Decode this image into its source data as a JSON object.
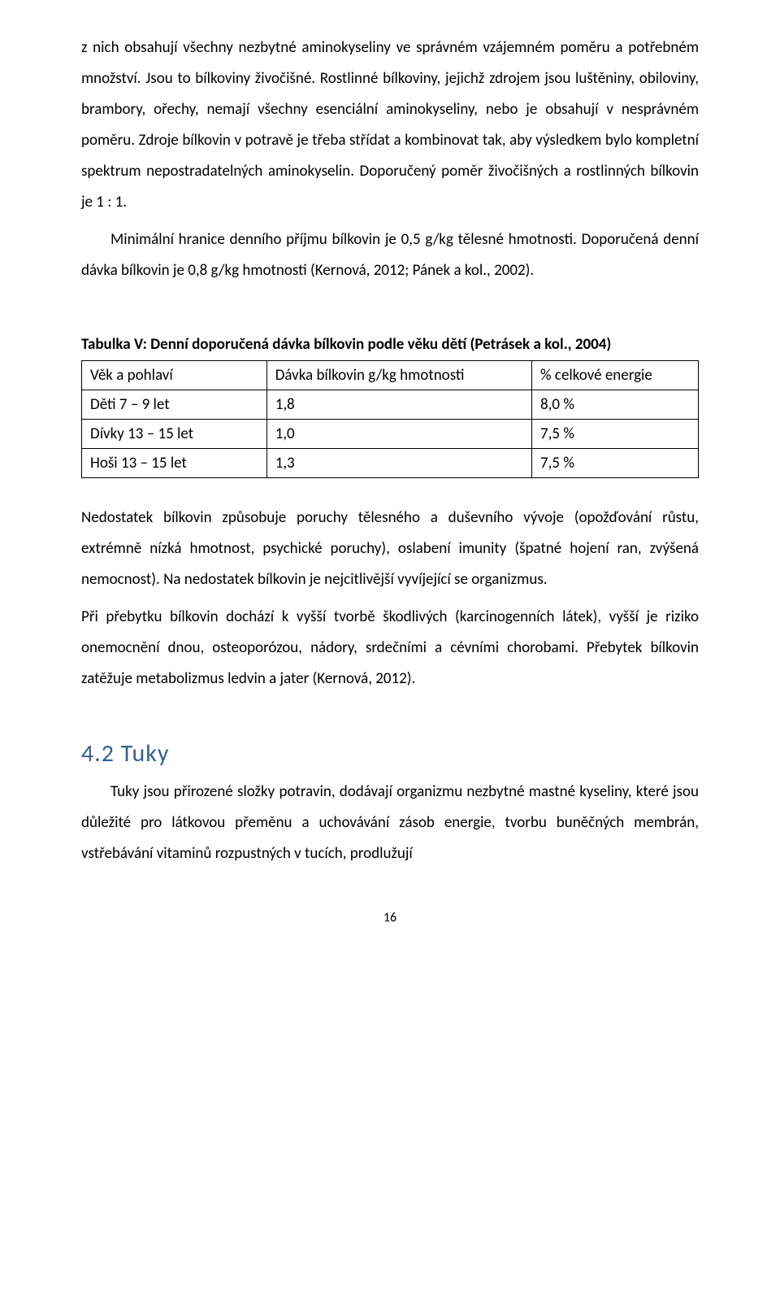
{
  "paragraphs": {
    "p1": "z nich obsahují všechny nezbytné aminokyseliny ve správném vzájemném poměru a potřebném množství. Jsou to bílkoviny živočišné. Rostlinné bílkoviny, jejichž zdrojem jsou luštěniny, obiloviny, brambory, ořechy, nemají všechny esenciální aminokyseliny, nebo je obsahují v nesprávném poměru. Zdroje bílkovin v potravě je třeba střídat a kombinovat tak, aby výsledkem bylo kompletní spektrum nepostradatelných aminokyselin. Doporučený poměr živočišných a rostlinných bílkovin je 1 : 1.",
    "p2": "Minimální hranice denního příjmu bílkovin je 0,5 g/kg tělesné hmotnosti. Doporučená denní dávka bílkovin je 0,8 g/kg hmotnosti (Kernová, 2012; Pánek a kol., 2002).",
    "p3": "Nedostatek bílkovin způsobuje poruchy tělesného a duševního vývoje (opožďování růstu, extrémně nízká hmotnost, psychické poruchy), oslabení imunity (špatné hojení ran, zvýšená nemocnost). Na nedostatek bílkovin je nejcitlivější vyvíjející se organizmus.",
    "p4": "Při přebytku bílkovin dochází k vyšší tvorbě škodlivých (karcinogenních látek), vyšší je riziko onemocnění dnou, osteoporózou, nádory, srdečními a cévními chorobami. Přebytek bílkovin zatěžuje metabolizmus ledvin a jater (Kernová, 2012).",
    "p5": "Tuky jsou přirozené složky potravin, dodávají organizmu nezbytné mastné kyseliny, které jsou důležité pro látkovou přeměnu a uchovávání zásob energie, tvorbu buněčných membrán, vstřebávání vitaminů rozpustných v tucích, prodlužují"
  },
  "table": {
    "caption": "Tabulka V: Denní doporučená dávka bílkovin podle věku dětí (Petrásek a kol., 2004)",
    "headers": [
      "Věk a pohlaví",
      "Dávka bílkovin g/kg hmotnosti",
      "% celkové energie"
    ],
    "rows": [
      [
        "Děti 7 – 9 let",
        "1,8",
        "8,0 %"
      ],
      [
        "Dívky 13 – 15 let",
        "1,0",
        "7,5 %"
      ],
      [
        "Hoši 13 – 15 let",
        "1,3",
        "7,5 %"
      ]
    ]
  },
  "heading": "4.2  Tuky",
  "pageNumber": "16",
  "colors": {
    "heading": "#365f91",
    "text": "#000000",
    "border": "#000000",
    "background": "#ffffff"
  },
  "fonts": {
    "body_size": 19,
    "heading_size": 30,
    "page_num_size": 16,
    "line_height": 2.0
  }
}
